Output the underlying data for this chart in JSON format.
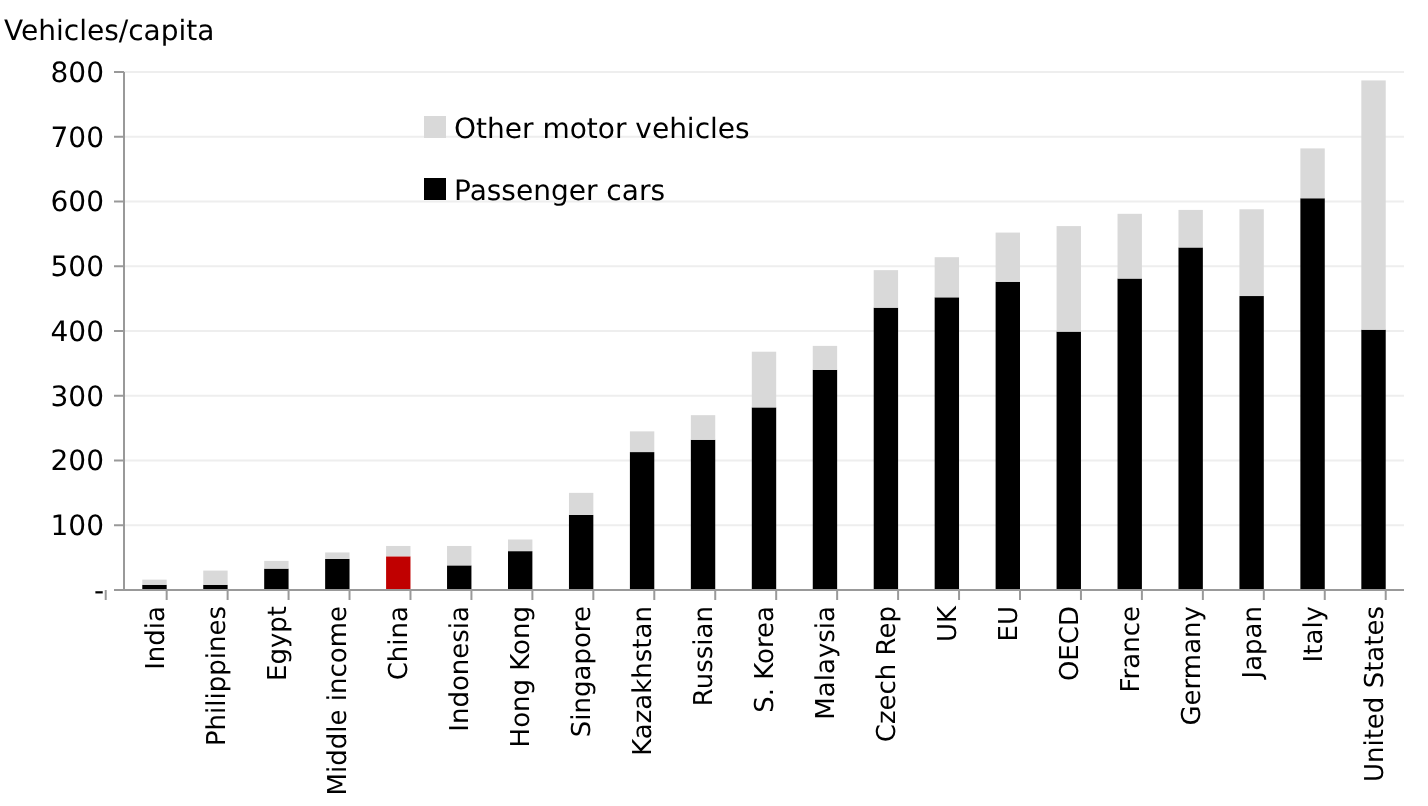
{
  "chart_data": {
    "type": "bar",
    "stacked": true,
    "ylabel": "Vehicles/capita",
    "categories": [
      "India",
      "Philippines",
      "Egypt",
      "Middle income",
      "China",
      "Indonesia",
      "Hong Kong",
      "Singapore",
      "Kazakhstan",
      "Russian",
      "S. Korea",
      "Malaysia",
      "Czech Rep",
      "UK",
      "EU",
      "OECD",
      "France",
      "Germany",
      "Japan",
      "Italy",
      "United States"
    ],
    "series": [
      {
        "name": "Passenger cars",
        "color": "#000000",
        "colors": [
          "#000000",
          "#000000",
          "#000000",
          "#000000",
          "#c00000",
          "#000000",
          "#000000",
          "#000000",
          "#000000",
          "#000000",
          "#000000",
          "#000000",
          "#000000",
          "#000000",
          "#000000",
          "#000000",
          "#000000",
          "#000000",
          "#000000",
          "#000000",
          "#000000"
        ],
        "values": [
          8,
          8,
          33,
          48,
          52,
          38,
          60,
          116,
          213,
          232,
          282,
          340,
          436,
          452,
          476,
          399,
          481,
          529,
          454,
          605,
          402
        ]
      },
      {
        "name": "Other motor vehicles",
        "color": "#d9d9d9",
        "values": [
          8,
          22,
          12,
          10,
          16,
          30,
          18,
          34,
          32,
          38,
          86,
          37,
          58,
          62,
          76,
          163,
          100,
          58,
          134,
          77,
          385
        ]
      }
    ],
    "ylim": [
      0,
      800
    ],
    "yticks": [
      {
        "value": 0,
        "label": "-"
      },
      100,
      200,
      300,
      400,
      500,
      600,
      700,
      800
    ],
    "grid": "y",
    "legend": "top left"
  }
}
